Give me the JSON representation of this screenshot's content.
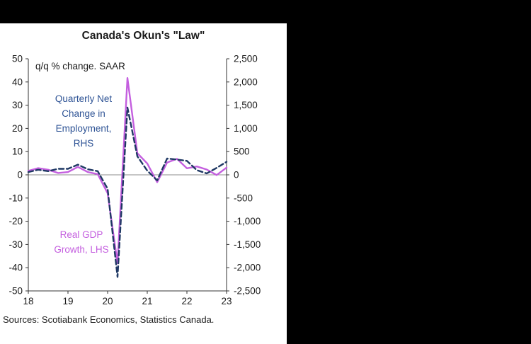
{
  "window": {
    "background": "#000000"
  },
  "chart": {
    "title": "Canada's Okun's \"Law\"",
    "subtitle": "q/q % change. SAAR",
    "annotations": {
      "employment": "Quarterly Net Change in Employment, RHS",
      "gdp": "Real GDP Growth, LHS"
    },
    "source": "Sources: Scotiabank Economics, Statistics Canada.",
    "colors": {
      "gdp_line": "#c45fdf",
      "employment_line": "#1f3864",
      "employment_text": "#2e5395",
      "gdp_text": "#c45fdf",
      "axis": "#333333",
      "zero_line": "#8c8c8c"
    }
  },
  "chart_data": {
    "type": "line",
    "title": "Canada's Okun's \"Law\"",
    "subtitle": "q/q % change. SAAR",
    "x_range": [
      2018,
      2023
    ],
    "x_tick_labels": [
      "18",
      "19",
      "20",
      "21",
      "22",
      "23"
    ],
    "x": [
      2018.0,
      2018.25,
      2018.5,
      2018.75,
      2019.0,
      2019.25,
      2019.5,
      2019.75,
      2020.0,
      2020.25,
      2020.5,
      2020.75,
      2021.0,
      2021.25,
      2021.5,
      2021.75,
      2022.0,
      2022.25,
      2022.5,
      2022.75,
      2023.0
    ],
    "series": [
      {
        "name": "Real GDP Growth, LHS",
        "axis": "left",
        "style": "solid",
        "color": "#c45fdf",
        "values": [
          1.7,
          2.9,
          2.2,
          0.8,
          1.2,
          3.4,
          1.2,
          0.3,
          -7.9,
          -38.1,
          41.7,
          9.3,
          4.9,
          -3.2,
          5.3,
          6.9,
          2.8,
          3.6,
          2.3,
          -0.1,
          3.1
        ]
      },
      {
        "name": "Quarterly Net Change in Employment, RHS",
        "axis": "right",
        "style": "dashed",
        "color": "#1f3864",
        "values": [
          60,
          110,
          80,
          130,
          130,
          220,
          120,
          80,
          -300,
          -2200,
          1450,
          400,
          90,
          -120,
          350,
          330,
          300,
          100,
          30,
          150,
          280
        ]
      }
    ],
    "left_axis": {
      "min": -50,
      "max": 50,
      "step": 10,
      "ticks": [
        "50",
        "40",
        "30",
        "20",
        "10",
        "0",
        "-10",
        "-20",
        "-30",
        "-40",
        "-50"
      ]
    },
    "right_axis": {
      "min": -2500,
      "max": 2500,
      "step": 500,
      "ticks": [
        "2,500",
        "2,000",
        "1,500",
        "1,000",
        "500",
        "0",
        "-500",
        "-1,000",
        "-1,500",
        "-2,000",
        "-2,500"
      ]
    },
    "grid": false,
    "legend": "in-plot text annotations"
  }
}
